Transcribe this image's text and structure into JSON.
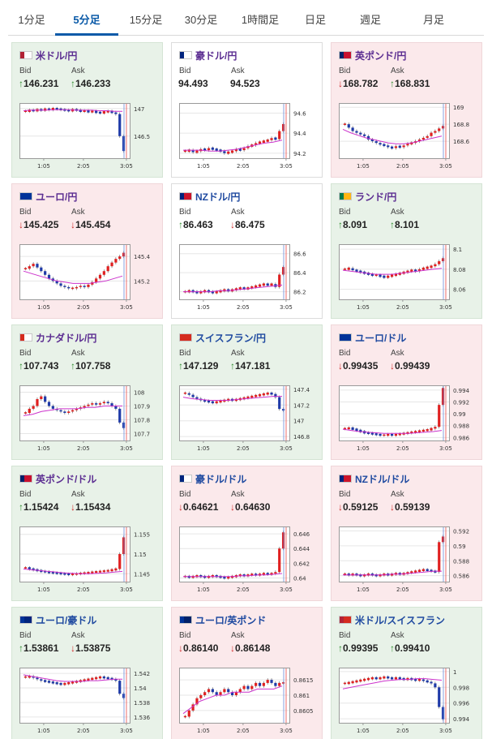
{
  "tabs": [
    {
      "label": "1分足",
      "active": false
    },
    {
      "label": "5分足",
      "active": true
    },
    {
      "label": "15分足",
      "active": false
    },
    {
      "label": "30分足",
      "active": false
    },
    {
      "label": "1時間足",
      "active": false
    },
    {
      "label": "日足",
      "active": false
    },
    {
      "label": "週足",
      "active": false
    },
    {
      "label": "月足",
      "active": false
    }
  ],
  "labels": {
    "bid": "Bid",
    "ask": "Ask"
  },
  "colors": {
    "up_bg": "#e8f2e8",
    "down_bg": "#fbe9eb",
    "candle_up": "#e02020",
    "candle_down": "#1f3aa8",
    "ma": "#cc33cc",
    "cursor": "#e84a4a"
  },
  "cards": [
    {
      "pair": "米ドル/円",
      "flag": [
        "#b22234",
        "#ffffff"
      ],
      "state": "up",
      "bid_dir": "up",
      "bid": "146.231",
      "ask_dir": "up",
      "ask": "146.233",
      "chart_data": {
        "type": "candlestick",
        "x_ticks": [
          "1:05",
          "2:05",
          "3:05"
        ],
        "y_ticks": [
          "147",
          "146.5"
        ],
        "ylim": [
          146.1,
          147.1
        ],
        "trend": [
          146.95,
          146.97,
          146.96,
          146.98,
          146.97,
          146.99,
          146.98,
          147.0,
          146.99,
          146.98,
          146.97,
          146.96,
          146.98,
          146.97,
          146.95,
          146.96,
          146.94,
          146.95,
          146.93,
          146.92,
          146.94,
          146.95,
          146.93,
          146.9,
          146.5,
          146.23
        ],
        "ma": [
          146.96,
          146.97,
          146.97,
          146.97,
          146.98,
          146.98,
          146.98,
          146.97,
          146.97,
          146.97,
          146.96,
          146.96,
          146.95,
          146.95
        ]
      }
    },
    {
      "pair": "豪ドル/円",
      "flag": [
        "#00247d",
        "#ffffff"
      ],
      "state": "flat",
      "bid_dir": "",
      "bid": "94.493",
      "ask_dir": "",
      "ask": "94.523",
      "chart_data": {
        "type": "candlestick",
        "x_ticks": [
          "1:05",
          "2:05",
          "3:05"
        ],
        "y_ticks": [
          "94.6",
          "94.4",
          "94.2"
        ],
        "ylim": [
          94.15,
          94.7
        ],
        "trend": [
          94.22,
          94.23,
          94.21,
          94.22,
          94.24,
          94.23,
          94.25,
          94.24,
          94.23,
          94.22,
          94.2,
          94.21,
          94.22,
          94.24,
          94.23,
          94.25,
          94.27,
          94.28,
          94.3,
          94.31,
          94.32,
          94.33,
          94.35,
          94.34,
          94.42,
          94.49
        ],
        "ma": [
          94.23,
          94.23,
          94.23,
          94.22,
          94.22,
          94.23,
          94.24,
          94.26,
          94.28,
          94.3,
          94.31,
          94.33
        ]
      }
    },
    {
      "pair": "英ポンド/円",
      "flag": [
        "#012169",
        "#c8102e"
      ],
      "state": "down",
      "bid_dir": "down",
      "bid": "168.782",
      "ask_dir": "up",
      "ask": "168.831",
      "chart_data": {
        "type": "candlestick",
        "x_ticks": [
          "1:05",
          "2:05",
          "3:05"
        ],
        "y_ticks": [
          "169",
          "168.8",
          "168.6"
        ],
        "ylim": [
          168.4,
          169.05
        ],
        "trend": [
          168.8,
          168.76,
          168.72,
          168.7,
          168.68,
          168.66,
          168.62,
          168.6,
          168.58,
          168.56,
          168.55,
          168.53,
          168.52,
          168.54,
          168.53,
          168.55,
          168.57,
          168.58,
          168.6,
          168.62,
          168.64,
          168.66,
          168.7,
          168.72,
          168.75,
          168.78
        ],
        "ma": [
          168.74,
          168.7,
          168.67,
          168.64,
          168.62,
          168.6,
          168.58,
          168.57,
          168.57,
          168.58,
          168.6,
          168.62,
          168.64,
          168.66
        ]
      }
    },
    {
      "pair": "ユーロ/円",
      "flag": [
        "#003399",
        "#003399"
      ],
      "state": "down",
      "bid_dir": "down",
      "bid": "145.425",
      "ask_dir": "down",
      "ask": "145.454",
      "chart_data": {
        "type": "candlestick",
        "x_ticks": [
          "1:05",
          "2:05",
          "3:05"
        ],
        "y_ticks": [
          "145.4",
          "145.2"
        ],
        "ylim": [
          145.05,
          145.5
        ],
        "trend": [
          145.3,
          145.32,
          145.34,
          145.31,
          145.28,
          145.25,
          145.22,
          145.2,
          145.18,
          145.16,
          145.15,
          145.14,
          145.14,
          145.15,
          145.16,
          145.15,
          145.17,
          145.19,
          145.22,
          145.25,
          145.28,
          145.32,
          145.35,
          145.38,
          145.4,
          145.43
        ],
        "ma": [
          145.28,
          145.26,
          145.24,
          145.22,
          145.2,
          145.19,
          145.18,
          145.18,
          145.18,
          145.19,
          145.2,
          145.22,
          145.24
        ]
      }
    },
    {
      "pair": "NZドル/円",
      "flag": [
        "#00247d",
        "#cc142b"
      ],
      "state": "flat",
      "bid_dir": "up",
      "bid": "86.463",
      "ask_dir": "down",
      "ask": "86.475",
      "chart_data": {
        "type": "candlestick",
        "x_ticks": [
          "1:05",
          "2:05",
          "3:05"
        ],
        "y_ticks": [
          "86.6",
          "86.4",
          "86.2"
        ],
        "ylim": [
          86.12,
          86.7
        ],
        "trend": [
          86.2,
          86.21,
          86.2,
          86.19,
          86.2,
          86.21,
          86.2,
          86.19,
          86.2,
          86.21,
          86.22,
          86.21,
          86.22,
          86.23,
          86.24,
          86.23,
          86.24,
          86.25,
          86.26,
          86.27,
          86.28,
          86.27,
          86.28,
          86.25,
          86.38,
          86.46
        ],
        "ma": [
          86.2,
          86.2,
          86.2,
          86.2,
          86.21,
          86.21,
          86.22,
          86.23,
          86.24,
          86.25,
          86.26,
          86.27
        ]
      }
    },
    {
      "pair": "ランド/円",
      "flag": [
        "#007a4d",
        "#ffb612"
      ],
      "state": "up",
      "bid_dir": "up",
      "bid": "8.091",
      "ask_dir": "up",
      "ask": "8.101",
      "chart_data": {
        "type": "candlestick",
        "x_ticks": [
          "1:05",
          "2:05",
          "3:05"
        ],
        "y_ticks": [
          "8.1",
          "8.08",
          "8.06"
        ],
        "ylim": [
          8.05,
          8.105
        ],
        "trend": [
          8.08,
          8.081,
          8.079,
          8.078,
          8.077,
          8.076,
          8.075,
          8.074,
          8.074,
          8.073,
          8.072,
          8.073,
          8.074,
          8.075,
          8.076,
          8.077,
          8.078,
          8.079,
          8.078,
          8.08,
          8.081,
          8.082,
          8.083,
          8.085,
          8.088,
          8.091
        ],
        "ma": [
          8.079,
          8.078,
          8.077,
          8.076,
          8.075,
          8.075,
          8.075,
          8.076,
          8.077,
          8.078,
          8.079,
          8.08,
          8.081
        ]
      }
    },
    {
      "pair": "カナダドル/円",
      "flag": [
        "#d52b1e",
        "#ffffff"
      ],
      "state": "up",
      "bid_dir": "up",
      "bid": "107.743",
      "ask_dir": "up",
      "ask": "107.758",
      "chart_data": {
        "type": "candlestick",
        "x_ticks": [
          "1:05",
          "2:05",
          "3:05"
        ],
        "y_ticks": [
          "108",
          "107.9",
          "107.8",
          "107.7"
        ],
        "ylim": [
          107.65,
          108.05
        ],
        "trend": [
          107.85,
          107.88,
          107.9,
          107.95,
          107.97,
          107.93,
          107.9,
          107.88,
          107.87,
          107.86,
          107.85,
          107.86,
          107.87,
          107.88,
          107.89,
          107.9,
          107.91,
          107.92,
          107.91,
          107.92,
          107.93,
          107.92,
          107.9,
          107.88,
          107.78,
          107.74
        ],
        "ma": [
          107.83,
          107.84,
          107.86,
          107.87,
          107.88,
          107.88,
          107.88,
          107.89,
          107.89,
          107.9,
          107.9,
          107.9
        ]
      }
    },
    {
      "pair": "スイスフラン/円",
      "flag": [
        "#d52b1e",
        "#d52b1e"
      ],
      "state": "up",
      "bid_dir": "up",
      "bid": "147.129",
      "ask_dir": "up",
      "ask": "147.181",
      "chart_data": {
        "type": "candlestick",
        "x_ticks": [
          "1:05",
          "2:05",
          "3:05"
        ],
        "y_ticks": [
          "147.4",
          "147.2",
          "147",
          "146.8"
        ],
        "ylim": [
          146.75,
          147.45
        ],
        "trend": [
          147.35,
          147.33,
          147.3,
          147.28,
          147.26,
          147.25,
          147.24,
          147.23,
          147.24,
          147.25,
          147.26,
          147.27,
          147.26,
          147.27,
          147.28,
          147.29,
          147.3,
          147.31,
          147.32,
          147.33,
          147.34,
          147.35,
          147.34,
          147.3,
          147.15,
          147.13
        ],
        "ma": [
          147.3,
          147.28,
          147.27,
          147.26,
          147.26,
          147.26,
          147.27,
          147.28,
          147.29,
          147.3,
          147.31,
          147.31
        ]
      }
    },
    {
      "pair": "ユーロ/ドル",
      "flag": [
        "#003399",
        "#003399"
      ],
      "state": "down",
      "bid_dir": "down",
      "bid": "0.99435",
      "ask_dir": "down",
      "ask": "0.99439",
      "chart_data": {
        "type": "candlestick",
        "x_ticks": [
          "1:05",
          "2:05",
          "3:05"
        ],
        "y_ticks": [
          "0.994",
          "0.992",
          "0.99",
          "0.988",
          "0.986"
        ],
        "ylim": [
          0.9855,
          0.9948
        ],
        "trend": [
          0.9875,
          0.9876,
          0.9874,
          0.9872,
          0.987,
          0.9868,
          0.9867,
          0.9866,
          0.9865,
          0.9864,
          0.9864,
          0.9865,
          0.9864,
          0.9865,
          0.9866,
          0.9867,
          0.9868,
          0.9869,
          0.987,
          0.9871,
          0.9872,
          0.9873,
          0.9875,
          0.9878,
          0.9915,
          0.99435
        ],
        "ma": [
          0.9874,
          0.9872,
          0.987,
          0.9869,
          0.9868,
          0.9867,
          0.9867,
          0.9867,
          0.9867,
          0.9868,
          0.9869,
          0.987,
          0.9872
        ]
      }
    },
    {
      "pair": "英ポンド/ドル",
      "flag": [
        "#012169",
        "#c8102e"
      ],
      "state": "up",
      "bid_dir": "up",
      "bid": "1.15424",
      "ask_dir": "down",
      "ask": "1.15434",
      "chart_data": {
        "type": "candlestick",
        "x_ticks": [
          "1:05",
          "2:05",
          "3:05"
        ],
        "y_ticks": [
          "1.155",
          "1.15",
          "1.145"
        ],
        "ylim": [
          1.143,
          1.157
        ],
        "trend": [
          1.1465,
          1.1462,
          1.146,
          1.1458,
          1.1456,
          1.1455,
          1.1453,
          1.1452,
          1.1451,
          1.145,
          1.1449,
          1.1448,
          1.1449,
          1.145,
          1.1451,
          1.1452,
          1.1453,
          1.1454,
          1.1455,
          1.1456,
          1.1457,
          1.1458,
          1.146,
          1.1462,
          1.15,
          1.15424
        ],
        "ma": [
          1.1462,
          1.146,
          1.1458,
          1.1456,
          1.1454,
          1.1452,
          1.1451,
          1.145,
          1.145,
          1.1451,
          1.1452,
          1.1454,
          1.1456
        ]
      }
    },
    {
      "pair": "豪ドル/ドル",
      "flag": [
        "#00247d",
        "#ffffff"
      ],
      "state": "down",
      "bid_dir": "down",
      "bid": "0.64621",
      "ask_dir": "down",
      "ask": "0.64630",
      "chart_data": {
        "type": "candlestick",
        "x_ticks": [
          "1:05",
          "2:05",
          "3:05"
        ],
        "y_ticks": [
          "0.646",
          "0.644",
          "0.642",
          "0.64"
        ],
        "ylim": [
          0.6395,
          0.647
        ],
        "trend": [
          0.6402,
          0.6401,
          0.6402,
          0.6403,
          0.6402,
          0.6401,
          0.6402,
          0.6403,
          0.6402,
          0.6401,
          0.64,
          0.6401,
          0.6402,
          0.6403,
          0.6404,
          0.6403,
          0.6404,
          0.6405,
          0.6404,
          0.6405,
          0.6406,
          0.6405,
          0.6406,
          0.6408,
          0.644,
          0.6462
        ],
        "ma": [
          0.6402,
          0.6402,
          0.6402,
          0.6402,
          0.6402,
          0.6402,
          0.6402,
          0.6403,
          0.6403,
          0.6404,
          0.6404,
          0.6405,
          0.6406
        ]
      }
    },
    {
      "pair": "NZドル/ドル",
      "flag": [
        "#00247d",
        "#cc142b"
      ],
      "state": "down",
      "bid_dir": "down",
      "bid": "0.59125",
      "ask_dir": "down",
      "ask": "0.59139",
      "chart_data": {
        "type": "candlestick",
        "x_ticks": [
          "1:05",
          "2:05",
          "3:05"
        ],
        "y_ticks": [
          "0.592",
          "0.59",
          "0.588",
          "0.586"
        ],
        "ylim": [
          0.5852,
          0.5926
        ],
        "trend": [
          0.5862,
          0.5861,
          0.5862,
          0.5861,
          0.586,
          0.5861,
          0.5862,
          0.5861,
          0.586,
          0.5861,
          0.5862,
          0.5861,
          0.5862,
          0.5863,
          0.5862,
          0.5863,
          0.5864,
          0.5865,
          0.5866,
          0.5867,
          0.5868,
          0.5867,
          0.5866,
          0.5865,
          0.5905,
          0.59125
        ],
        "ma": [
          0.5861,
          0.5861,
          0.5861,
          0.5861,
          0.5861,
          0.5861,
          0.5862,
          0.5862,
          0.5863,
          0.5864,
          0.5865,
          0.5866,
          0.5866
        ]
      }
    },
    {
      "pair": "ユーロ/豪ドル",
      "flag": [
        "#003399",
        "#00247d"
      ],
      "state": "up",
      "bid_dir": "up",
      "bid": "1.53861",
      "ask_dir": "down",
      "ask": "1.53875",
      "chart_data": {
        "type": "candlestick",
        "x_ticks": [
          "1:05",
          "2:05",
          "3:05"
        ],
        "y_ticks": [
          "1.542",
          "1.54",
          "1.538",
          "1.536"
        ],
        "ylim": [
          1.5352,
          1.5428
        ],
        "trend": [
          1.5415,
          1.5416,
          1.5414,
          1.5412,
          1.541,
          1.5409,
          1.5408,
          1.5407,
          1.5406,
          1.5405,
          1.5406,
          1.5407,
          1.5408,
          1.5409,
          1.541,
          1.5411,
          1.5412,
          1.5413,
          1.5414,
          1.5415,
          1.5414,
          1.5413,
          1.5412,
          1.541,
          1.5392,
          1.53861
        ],
        "ma": [
          1.5418,
          1.5416,
          1.5414,
          1.5412,
          1.541,
          1.5409,
          1.5409,
          1.5409,
          1.541,
          1.541,
          1.5411,
          1.5412,
          1.5412
        ]
      }
    },
    {
      "pair": "ユーロ/英ポンド",
      "flag": [
        "#003399",
        "#012169"
      ],
      "state": "down",
      "bid_dir": "down",
      "bid": "0.86140",
      "ask_dir": "down",
      "ask": "0.86148",
      "chart_data": {
        "type": "candlestick",
        "x_ticks": [
          "1:05",
          "2:05",
          "3:05"
        ],
        "y_ticks": [
          "0.8615",
          "0.861",
          "0.8605"
        ],
        "ylim": [
          0.8601,
          0.8619
        ],
        "trend": [
          0.8603,
          0.8605,
          0.8607,
          0.8609,
          0.861,
          0.8611,
          0.8612,
          0.8611,
          0.861,
          0.8611,
          0.8612,
          0.8611,
          0.861,
          0.8611,
          0.8612,
          0.8613,
          0.8612,
          0.8613,
          0.8614,
          0.8613,
          0.8614,
          0.8615,
          0.8614,
          0.8613,
          0.8614,
          0.8614
        ],
        "ma": [
          0.8604,
          0.8606,
          0.8608,
          0.8609,
          0.861,
          0.861,
          0.8611,
          0.8611,
          0.8611,
          0.8612,
          0.8612,
          0.8612,
          0.8613
        ]
      }
    },
    {
      "pair": "米ドル/スイスフラン",
      "flag": [
        "#b22234",
        "#d52b1e"
      ],
      "state": "up",
      "bid_dir": "up",
      "bid": "0.99395",
      "ask_dir": "up",
      "ask": "0.99410",
      "chart_data": {
        "type": "candlestick",
        "x_ticks": [
          "1:05",
          "2:05",
          "3:05"
        ],
        "y_ticks": [
          "1",
          "0.998",
          "0.996",
          "0.994"
        ],
        "ylim": [
          0.9935,
          1.0005
        ],
        "trend": [
          0.9985,
          0.9986,
          0.9987,
          0.9988,
          0.9989,
          0.999,
          0.9991,
          0.9992,
          0.9991,
          0.9992,
          0.9993,
          0.9992,
          0.9991,
          0.9992,
          0.9991,
          0.999,
          0.9991,
          0.999,
          0.9989,
          0.999,
          0.9988,
          0.9987,
          0.9985,
          0.998,
          0.9955,
          0.99395
        ],
        "ma": [
          0.9978,
          0.998,
          0.9982,
          0.9984,
          0.9986,
          0.9988,
          0.9989,
          0.999,
          0.999,
          0.9991,
          0.9991,
          0.999,
          0.9989
        ]
      }
    }
  ]
}
